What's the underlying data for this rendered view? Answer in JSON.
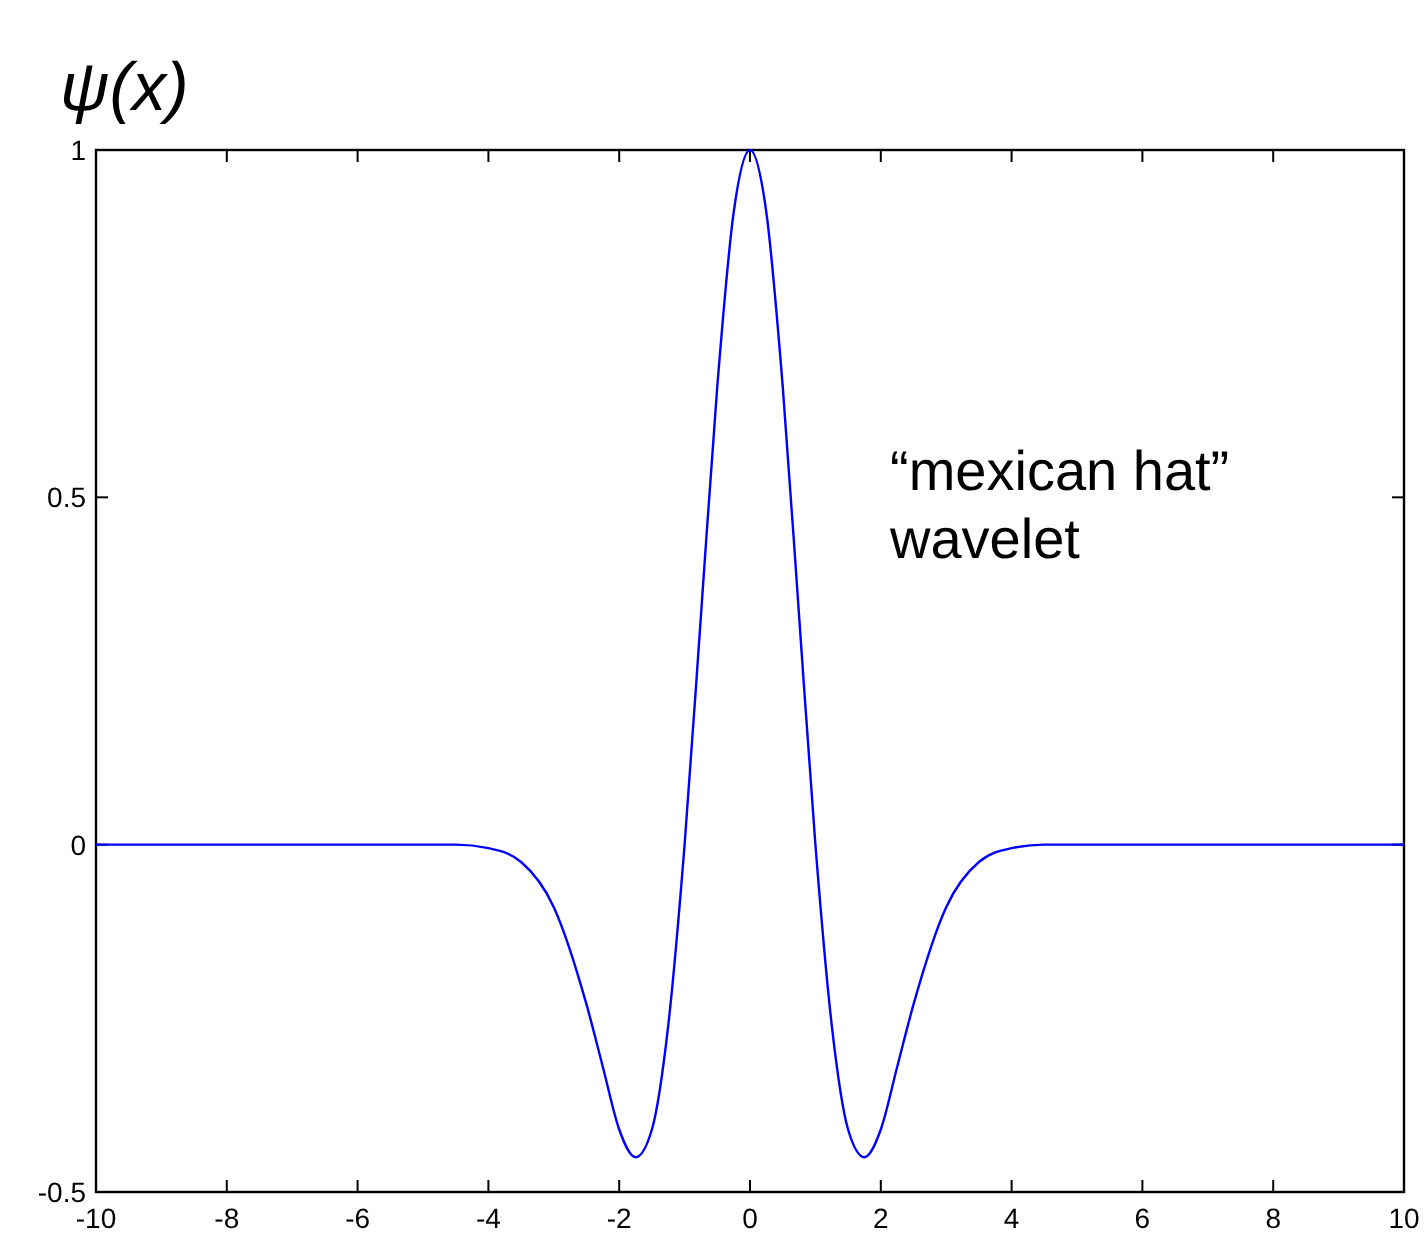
{
  "chart_data": {
    "type": "line",
    "title": "ψ(x)",
    "annotations": [
      "“mexican hat”\nwavelet"
    ],
    "x": [
      -10,
      -5,
      -4.5,
      -4,
      -3.5,
      -3,
      -2.5,
      -2.25,
      -2,
      -1.75,
      -1.5,
      -1.25,
      -1,
      -0.75,
      -0.5,
      -0.25,
      0,
      0.25,
      0.5,
      0.75,
      1,
      1.25,
      1.5,
      1.75,
      2,
      2.25,
      2.5,
      3,
      3.5,
      4,
      4.5,
      5,
      10
    ],
    "series": [
      {
        "color": "#0000ff",
        "values": [
          0,
          0,
          0,
          -0.005,
          -0.025,
          -0.09,
          -0.23,
          -0.32,
          -0.41,
          -0.45,
          -0.41,
          -0.26,
          0,
          0.33,
          0.66,
          0.91,
          1,
          0.91,
          0.66,
          0.33,
          0,
          -0.26,
          -0.41,
          -0.45,
          -0.41,
          -0.32,
          -0.23,
          -0.09,
          -0.025,
          -0.005,
          0,
          0,
          0
        ]
      }
    ],
    "xlim": [
      -10,
      10
    ],
    "xticks": [
      -10,
      -8,
      -6,
      -4,
      -2,
      0,
      2,
      4,
      6,
      8,
      10
    ],
    "ylim": [
      -0.5,
      1
    ],
    "yticks": [
      -0.5,
      0,
      0.5,
      1
    ],
    "grid": false,
    "marker": "none",
    "line_style": "solid"
  }
}
